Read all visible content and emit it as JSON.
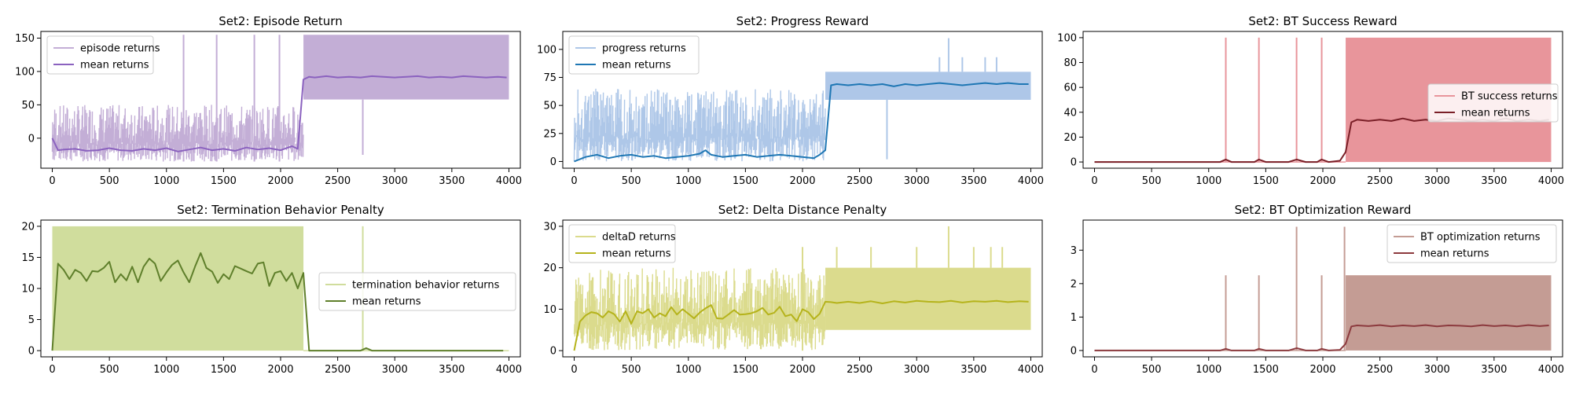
{
  "chart_data": [
    {
      "type": "line",
      "title": "Set2: Episode Return",
      "xlim": [
        -100,
        4100
      ],
      "ylim": [
        -45,
        160
      ],
      "xticks": [
        0,
        500,
        1000,
        1500,
        2000,
        2500,
        3000,
        3500,
        4000
      ],
      "yticks": [
        0,
        50,
        100,
        150
      ],
      "legend_position": "upper-left",
      "colors": {
        "raw": "#c3aed6",
        "mean": "#8b62bf"
      },
      "series": [
        {
          "name": "episode returns",
          "kind": "raw",
          "low": -35,
          "high": 50,
          "after_low": 58,
          "after_high": 155,
          "spikes": [
            [
              1150,
              155
            ],
            [
              1440,
              155
            ],
            [
              1770,
              155
            ],
            [
              1990,
              155
            ],
            [
              2720,
              -25
            ]
          ]
        },
        {
          "name": "mean returns",
          "kind": "mean",
          "pre_level": -17,
          "post_level": 92,
          "x": [
            0,
            50,
            100,
            200,
            300,
            400,
            500,
            600,
            700,
            800,
            900,
            1000,
            1100,
            1200,
            1300,
            1400,
            1500,
            1600,
            1700,
            1800,
            1900,
            2000,
            2100,
            2150,
            2200,
            2250,
            2300,
            2400,
            2500,
            2600,
            2700,
            2800,
            2900,
            3000,
            3100,
            3200,
            3300,
            3400,
            3500,
            3600,
            3700,
            3800,
            3900,
            3980
          ],
          "y": [
            0,
            -18,
            -17,
            -16,
            -19,
            -18,
            -15,
            -18,
            -19,
            -16,
            -18,
            -15,
            -20,
            -17,
            -14,
            -18,
            -16,
            -19,
            -14,
            -17,
            -15,
            -18,
            -12,
            -16,
            88,
            92,
            91,
            93,
            91,
            92,
            91,
            93,
            92,
            91,
            92,
            93,
            91,
            92,
            91,
            93,
            92,
            91,
            92,
            91
          ]
        }
      ]
    },
    {
      "type": "line",
      "title": "Set2: Progress Reward",
      "xlim": [
        -100,
        4100
      ],
      "ylim": [
        -6,
        116
      ],
      "xticks": [
        0,
        500,
        1000,
        1500,
        2000,
        2500,
        3000,
        3500,
        4000
      ],
      "yticks": [
        0,
        25,
        50,
        75,
        100
      ],
      "legend_position": "upper-left",
      "colors": {
        "raw": "#aec7e8",
        "mean": "#1f77b4"
      },
      "series": [
        {
          "name": "progress returns",
          "kind": "raw",
          "low": 0,
          "high": 65,
          "after_low": 55,
          "after_high": 80,
          "spikes": [
            [
              2740,
              2
            ],
            [
              3280,
              110
            ],
            [
              3200,
              93
            ],
            [
              3400,
              93
            ],
            [
              3600,
              93
            ],
            [
              3700,
              93
            ]
          ]
        },
        {
          "name": "mean returns",
          "kind": "mean",
          "x": [
            0,
            100,
            200,
            300,
            400,
            500,
            600,
            700,
            800,
            900,
            1000,
            1100,
            1150,
            1200,
            1300,
            1400,
            1500,
            1600,
            1700,
            1800,
            1900,
            2000,
            2100,
            2150,
            2200,
            2250,
            2300,
            2400,
            2500,
            2600,
            2700,
            2800,
            2900,
            3000,
            3100,
            3200,
            3300,
            3400,
            3500,
            3600,
            3700,
            3800,
            3900,
            3980
          ],
          "y": [
            0,
            4,
            6,
            3,
            5,
            6,
            4,
            5,
            3,
            4,
            5,
            7,
            10,
            6,
            4,
            5,
            6,
            4,
            5,
            6,
            5,
            4,
            3,
            6,
            10,
            68,
            69,
            68,
            69,
            68,
            69,
            67,
            69,
            68,
            69,
            70,
            69,
            68,
            69,
            70,
            69,
            70,
            69,
            69
          ]
        }
      ]
    },
    {
      "type": "line",
      "title": "Set2: BT Success Reward",
      "xlim": [
        -100,
        4100
      ],
      "ylim": [
        -5,
        105
      ],
      "xticks": [
        0,
        500,
        1000,
        1500,
        2000,
        2500,
        3000,
        3500,
        4000
      ],
      "yticks": [
        0,
        20,
        40,
        60,
        80,
        100
      ],
      "legend_position": "center-right",
      "colors": {
        "raw": "#e8959b",
        "mean": "#7a1f27"
      },
      "series": [
        {
          "name": "BT success returns",
          "kind": "raw",
          "low": 0,
          "high": 0,
          "after_low": 0,
          "after_high": 100,
          "spikes": [
            [
              1150,
              100
            ],
            [
              1440,
              100
            ],
            [
              1770,
              100
            ],
            [
              1990,
              100
            ]
          ]
        },
        {
          "name": "mean returns",
          "kind": "mean",
          "x": [
            0,
            500,
            1000,
            1100,
            1150,
            1200,
            1400,
            1440,
            1500,
            1700,
            1770,
            1850,
            1950,
            1990,
            2050,
            2150,
            2200,
            2250,
            2300,
            2400,
            2500,
            2600,
            2700,
            2800,
            2900,
            3000,
            3100,
            3200,
            3300,
            3400,
            3500,
            3600,
            3700,
            3800,
            3900,
            3980
          ],
          "y": [
            0,
            0,
            0,
            0,
            2,
            0,
            0,
            2,
            0,
            0,
            2,
            0,
            0,
            2,
            0,
            1,
            8,
            32,
            34,
            33,
            34,
            33,
            35,
            33,
            34,
            33,
            35,
            34,
            33,
            34,
            33,
            35,
            33,
            34,
            33,
            34
          ]
        }
      ]
    },
    {
      "type": "line",
      "title": "Set2: Termination Behavior Penalty",
      "xlim": [
        -100,
        4100
      ],
      "ylim": [
        -1,
        21
      ],
      "xticks": [
        0,
        500,
        1000,
        1500,
        2000,
        2500,
        3000,
        3500,
        4000
      ],
      "yticks": [
        0,
        5,
        10,
        15,
        20
      ],
      "legend_position": "center-right",
      "colors": {
        "raw": "#d0dd9d",
        "mean": "#5f7f2b"
      },
      "series": [
        {
          "name": "termination behavior returns",
          "kind": "raw",
          "low": 0,
          "high": 20,
          "after_low": 0,
          "after_high": 0,
          "spikes": [
            [
              2720,
              20
            ]
          ]
        },
        {
          "name": "mean returns",
          "kind": "mean",
          "x": [
            0,
            50,
            100,
            150,
            200,
            250,
            300,
            350,
            400,
            450,
            500,
            550,
            600,
            650,
            700,
            750,
            800,
            850,
            900,
            950,
            1000,
            1050,
            1100,
            1150,
            1200,
            1250,
            1300,
            1350,
            1400,
            1450,
            1500,
            1550,
            1600,
            1650,
            1700,
            1750,
            1800,
            1850,
            1900,
            1950,
            2000,
            2050,
            2100,
            2150,
            2200,
            2250,
            2700,
            2750,
            2800,
            3000,
            3500,
            3950
          ],
          "y": [
            0,
            14,
            13,
            11.5,
            13,
            12.5,
            11.2,
            12.8,
            12.7,
            13.3,
            14.3,
            11,
            12.3,
            11.3,
            13.5,
            11,
            13.5,
            14.8,
            14,
            11.2,
            12.6,
            13.8,
            14.5,
            12.6,
            11,
            13.5,
            15.7,
            13.3,
            12.7,
            10.9,
            12.3,
            11.5,
            13.6,
            13.2,
            12.8,
            12.4,
            14,
            14.2,
            10.4,
            12.5,
            12.8,
            11.2,
            12.5,
            10,
            12.5,
            0,
            0,
            0.4,
            0,
            0,
            0,
            0
          ]
        }
      ]
    },
    {
      "type": "line",
      "title": "Set2: Delta Distance Penalty",
      "xlim": [
        -100,
        4100
      ],
      "ylim": [
        -1.5,
        31.5
      ],
      "xticks": [
        0,
        500,
        1000,
        1500,
        2000,
        2500,
        3000,
        3500,
        4000
      ],
      "yticks": [
        0,
        10,
        20,
        30
      ],
      "legend_position": "upper-left",
      "colors": {
        "raw": "#dbdb8d",
        "mean": "#b5b31b"
      },
      "series": [
        {
          "name": "deltaD returns",
          "kind": "raw",
          "low": 0,
          "high": 20,
          "after_low": 5,
          "after_high": 20,
          "spikes": [
            [
              3280,
              30
            ],
            [
              2000,
              25
            ],
            [
              2300,
              25
            ],
            [
              2600,
              25
            ],
            [
              3000,
              25
            ],
            [
              3500,
              25
            ],
            [
              3650,
              25
            ],
            [
              3750,
              25
            ]
          ]
        },
        {
          "name": "mean returns",
          "kind": "mean",
          "x": [
            0,
            50,
            100,
            150,
            200,
            250,
            300,
            350,
            400,
            450,
            500,
            550,
            600,
            650,
            700,
            750,
            800,
            850,
            900,
            950,
            1000,
            1050,
            1100,
            1150,
            1200,
            1250,
            1300,
            1350,
            1400,
            1450,
            1500,
            1550,
            1600,
            1650,
            1700,
            1750,
            1800,
            1850,
            1900,
            1950,
            2000,
            2050,
            2100,
            2150,
            2200,
            2250,
            2300,
            2400,
            2500,
            2600,
            2700,
            2800,
            2900,
            3000,
            3100,
            3200,
            3300,
            3400,
            3500,
            3600,
            3700,
            3800,
            3900,
            3980
          ],
          "y": [
            0,
            7,
            8.5,
            9.3,
            9,
            8,
            9.5,
            8.8,
            7,
            9.5,
            6.5,
            9.5,
            9,
            10,
            8,
            9,
            8.3,
            10.5,
            8.7,
            10,
            8.9,
            7.8,
            9.2,
            10.2,
            11,
            7.8,
            7.7,
            8.7,
            9.8,
            8.7,
            8.8,
            9,
            9.5,
            10.3,
            8.7,
            9.1,
            10.6,
            8.3,
            8.7,
            7.1,
            10,
            9.3,
            7.6,
            8.9,
            11.8,
            11.7,
            11.5,
            11.8,
            11.5,
            11.9,
            11.4,
            11.9,
            11.6,
            12,
            11.8,
            11.7,
            12,
            11.6,
            11.9,
            11.8,
            12,
            11.7,
            11.9,
            11.8
          ]
        }
      ]
    },
    {
      "type": "line",
      "title": "Set2: BT Optimization Reward",
      "xlim": [
        -100,
        4100
      ],
      "ylim": [
        -0.19,
        3.9
      ],
      "xticks": [
        0,
        500,
        1000,
        1500,
        2000,
        2500,
        3000,
        3500,
        4000
      ],
      "yticks": [
        0,
        1,
        2,
        3
      ],
      "legend_position": "upper-right",
      "colors": {
        "raw": "#c49c94",
        "mean": "#8c3a3e"
      },
      "series": [
        {
          "name": "BT optimization returns",
          "kind": "raw",
          "low": 0,
          "high": 0,
          "after_low": 0,
          "after_high": 2.25,
          "spikes": [
            [
              1150,
              2.25
            ],
            [
              1440,
              2.25
            ],
            [
              1770,
              3.7
            ],
            [
              1990,
              2.25
            ],
            [
              2190,
              3.7
            ]
          ]
        },
        {
          "name": "mean returns",
          "kind": "mean",
          "x": [
            0,
            500,
            1000,
            1100,
            1150,
            1200,
            1400,
            1440,
            1500,
            1700,
            1770,
            1850,
            1950,
            1990,
            2050,
            2150,
            2200,
            2250,
            2300,
            2400,
            2500,
            2600,
            2700,
            2800,
            2900,
            3000,
            3100,
            3200,
            3300,
            3400,
            3500,
            3600,
            3700,
            3800,
            3900,
            3980
          ],
          "y": [
            0,
            0,
            0,
            0,
            0.05,
            0,
            0,
            0.05,
            0,
            0,
            0.07,
            0,
            0,
            0.05,
            0,
            0.02,
            0.2,
            0.72,
            0.75,
            0.73,
            0.76,
            0.72,
            0.75,
            0.73,
            0.76,
            0.72,
            0.75,
            0.74,
            0.72,
            0.76,
            0.73,
            0.75,
            0.72,
            0.76,
            0.73,
            0.75
          ]
        }
      ]
    }
  ]
}
